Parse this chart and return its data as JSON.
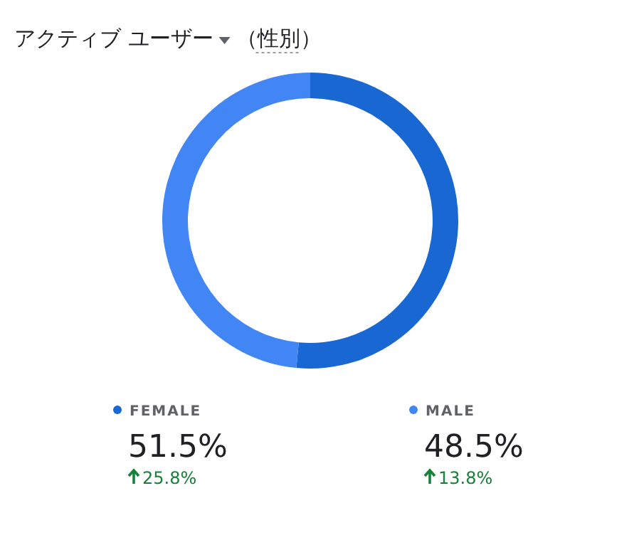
{
  "chart_data": {
    "type": "donut",
    "title": "アクティブ ユーザー",
    "subtitle": "（性別）",
    "categories": [
      "FEMALE",
      "MALE"
    ],
    "values": [
      51.5,
      48.5
    ],
    "colors": [
      "#1967d2",
      "#4285f4"
    ],
    "value_labels": [
      "51.5%",
      "48.5%"
    ],
    "annotations": [
      "25.8%",
      "13.8%"
    ],
    "legend": "bottom"
  }
}
